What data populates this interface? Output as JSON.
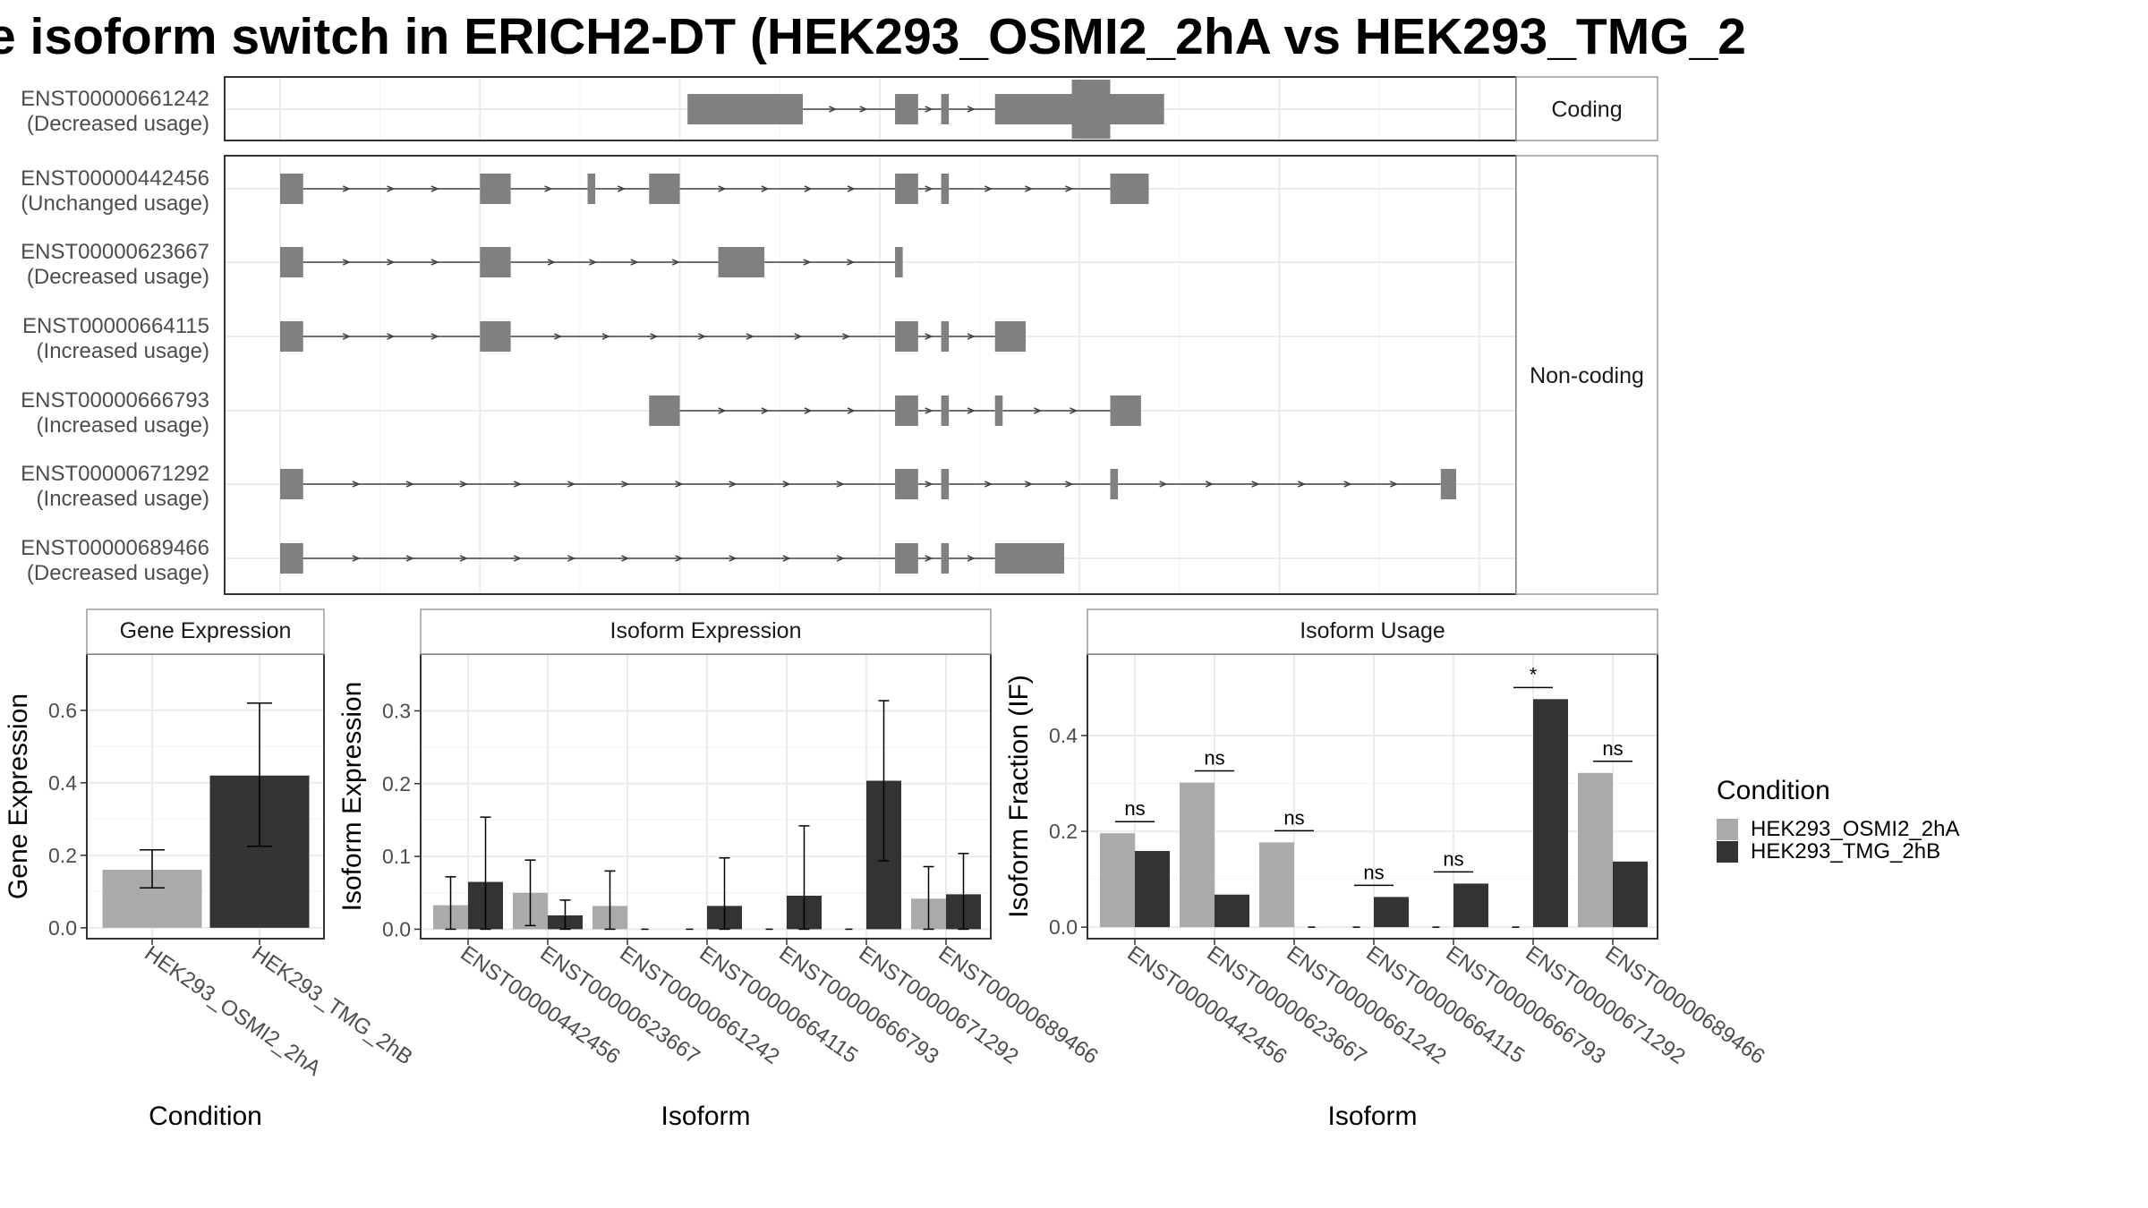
{
  "title": "e isoform switch in ERICH2-DT (HEK293_OSMI2_2hA vs HEK293_TMG_2",
  "colors": {
    "exon": "#808080",
    "intron": "#444444",
    "cond1": "#aaaaaa",
    "cond2": "#333333",
    "grid": "#ebebeb",
    "frame": "#333333",
    "strip_bg": "#ffffff",
    "strip_border": "#9a9a9a"
  },
  "structure_panel": {
    "strips": {
      "coding": "Coding",
      "noncoding": "Non-coding"
    },
    "isoforms": [
      {
        "id": "ENST00000661242",
        "usage": "(Decreased usage)",
        "group": "coding",
        "exons": [
          [
            1,
            16
          ],
          [
            28,
            31
          ],
          [
            34,
            35
          ],
          [
            41,
            63
          ]
        ],
        "cds": [
          51,
          56
        ],
        "intron_arrows": 8
      },
      {
        "id": "ENST00000442456",
        "usage": "(Unchanged usage)",
        "group": "noncoding",
        "exons": [
          [
            -52,
            -49
          ],
          [
            -26,
            -22
          ],
          [
            -12,
            -11
          ],
          [
            -4,
            0
          ],
          [
            28,
            31
          ],
          [
            34,
            35
          ],
          [
            56,
            61
          ]
        ]
      },
      {
        "id": "ENST00000623667",
        "usage": "(Decreased usage)",
        "group": "noncoding",
        "exons": [
          [
            -52,
            -49
          ],
          [
            -26,
            -22
          ],
          [
            5,
            11
          ],
          [
            28,
            29
          ]
        ]
      },
      {
        "id": "ENST00000664115",
        "usage": "(Increased usage)",
        "group": "noncoding",
        "exons": [
          [
            -52,
            -49
          ],
          [
            -26,
            -22
          ],
          [
            28,
            31
          ],
          [
            34,
            35
          ],
          [
            41,
            45
          ]
        ]
      },
      {
        "id": "ENST00000666793",
        "usage": "(Increased usage)",
        "group": "noncoding",
        "exons": [
          [
            -4,
            0
          ],
          [
            28,
            31
          ],
          [
            34,
            35
          ],
          [
            41,
            42
          ],
          [
            56,
            60
          ]
        ]
      },
      {
        "id": "ENST00000671292",
        "usage": "(Increased usage)",
        "group": "noncoding",
        "exons": [
          [
            -52,
            -49
          ],
          [
            28,
            31
          ],
          [
            34,
            35
          ],
          [
            56,
            57
          ],
          [
            99,
            101
          ]
        ]
      },
      {
        "id": "ENST00000689466",
        "usage": "(Decreased usage)",
        "group": "noncoding",
        "exons": [
          [
            -52,
            -49
          ],
          [
            28,
            31
          ],
          [
            34,
            35
          ],
          [
            41,
            50
          ]
        ]
      }
    ]
  },
  "chart_data": [
    {
      "type": "bar",
      "strip": "Gene Expression",
      "xlabel": "Condition",
      "ylabel": "Gene Expression",
      "categories": [
        "HEK293_OSMI2_2hA",
        "HEK293_TMG_2hB"
      ],
      "ylim": [
        -0.03,
        0.755
      ],
      "yticks": [
        0.0,
        0.2,
        0.4,
        0.6
      ],
      "ytick_labels": [
        "0.0",
        "0.2",
        "0.4",
        "0.6"
      ],
      "values": [
        0.16,
        0.42
      ],
      "err_low": [
        0.11,
        0.225
      ],
      "err_high": [
        0.215,
        0.62
      ],
      "grid": true
    },
    {
      "type": "bar",
      "strip": "Isoform Expression",
      "xlabel": "Isoform",
      "ylabel": "Isoform Expression",
      "categories": [
        "ENST00000442456",
        "ENST00000623667",
        "ENST00000661242",
        "ENST00000664115",
        "ENST00000666793",
        "ENST00000671292",
        "ENST00000689466"
      ],
      "ylim": [
        -0.013,
        0.378
      ],
      "yticks": [
        0.0,
        0.1,
        0.2,
        0.3
      ],
      "ytick_labels": [
        "0.0",
        "0.1",
        "0.2",
        "0.3"
      ],
      "series": [
        {
          "name": "HEK293_OSMI2_2hA",
          "values": [
            0.033,
            0.05,
            0.032,
            0.0,
            0.0,
            0.0,
            0.042
          ],
          "err_low": [
            0.0,
            0.005,
            0.0,
            0.0,
            0.0,
            0.0,
            0.0
          ],
          "err_high": [
            0.072,
            0.095,
            0.08,
            0.0,
            0.0,
            0.0,
            0.086
          ]
        },
        {
          "name": "HEK293_TMG_2hB",
          "values": [
            0.065,
            0.019,
            0.0,
            0.032,
            0.046,
            0.204,
            0.048
          ],
          "err_low": [
            0.0,
            0.0,
            0.0,
            0.0,
            0.0,
            0.094,
            0.0
          ],
          "err_high": [
            0.154,
            0.04,
            0.0,
            0.098,
            0.142,
            0.314,
            0.104
          ]
        }
      ],
      "grid": true
    },
    {
      "type": "bar",
      "strip": "Isoform Usage",
      "xlabel": "Isoform",
      "ylabel": "Isoform Fraction (IF)",
      "categories": [
        "ENST00000442456",
        "ENST00000623667",
        "ENST00000661242",
        "ENST00000664115",
        "ENST00000666793",
        "ENST00000671292",
        "ENST00000689466"
      ],
      "ylim": [
        -0.024,
        0.57
      ],
      "yticks": [
        0.0,
        0.2,
        0.4
      ],
      "ytick_labels": [
        "0.0",
        "0.2",
        "0.4"
      ],
      "series": [
        {
          "name": "HEK293_OSMI2_2hA",
          "values": [
            0.196,
            0.302,
            0.177,
            0.0,
            0.0,
            0.0,
            0.322
          ]
        },
        {
          "name": "HEK293_TMG_2hB",
          "values": [
            0.159,
            0.068,
            0.0,
            0.063,
            0.091,
            0.476,
            0.137
          ]
        }
      ],
      "significance": [
        "ns",
        "ns",
        "ns",
        "ns",
        "ns",
        "*",
        "ns"
      ],
      "grid": true
    }
  ],
  "legend": {
    "title": "Condition",
    "items": [
      "HEK293_OSMI2_2hA",
      "HEK293_TMG_2hB"
    ]
  }
}
